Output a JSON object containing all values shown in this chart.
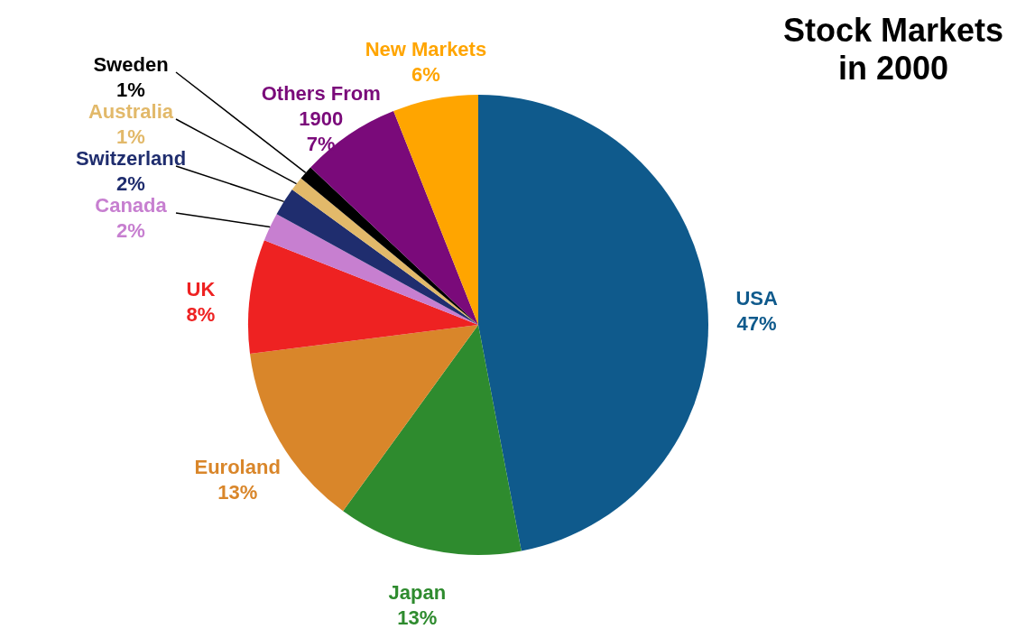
{
  "chart_data": {
    "type": "pie",
    "title": "Stock Markets in 2000",
    "categories": [
      "USA",
      "Japan",
      "Euroland",
      "UK",
      "Canada",
      "Switzerland",
      "Australia",
      "Sweden",
      "Others From 1900",
      "New Markets"
    ],
    "values": [
      47,
      13,
      13,
      8,
      2,
      2,
      1,
      1,
      7,
      6
    ],
    "value_labels": [
      "47%",
      "13%",
      "13%",
      "8%",
      "2%",
      "2%",
      "1%",
      "1%",
      "7%",
      "6%"
    ],
    "colors": [
      "#0f5a8c",
      "#2e8b2e",
      "#d9862a",
      "#ee2222",
      "#c77fd0",
      "#1f2d6e",
      "#e2b96a",
      "#000000",
      "#7a0a7a",
      "#ffa500"
    ]
  }
}
